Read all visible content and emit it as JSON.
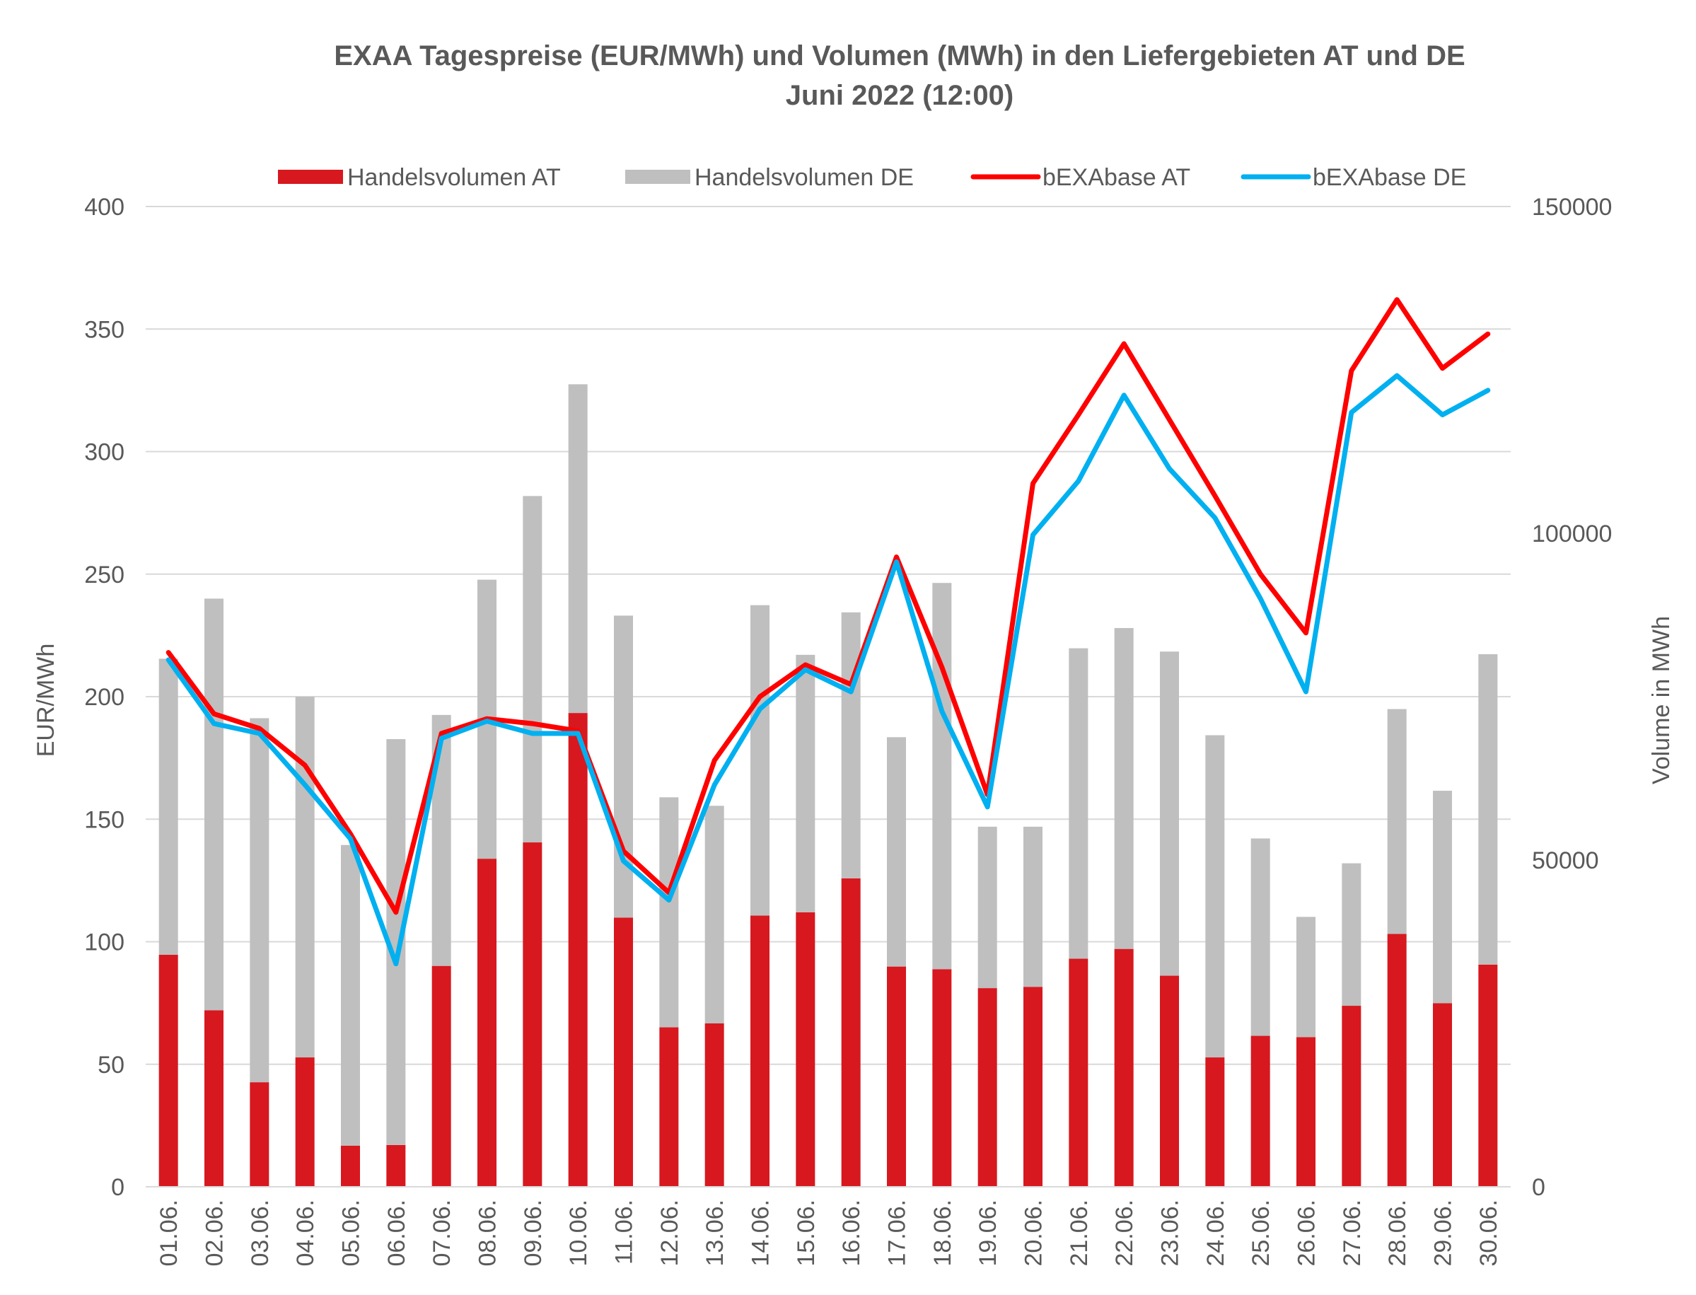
{
  "chart_data": {
    "type": "bar",
    "title": "EXAA Tagespreise (EUR/MWh) und Volumen (MWh) in den Liefergebieten AT und DE",
    "subtitle": "Juni 2022 (12:00)",
    "ylabel": "EUR/MWh",
    "y2label": "Volume in MWh",
    "ylim": [
      0,
      400
    ],
    "y2lim": [
      0,
      150000
    ],
    "yticks": [
      0,
      50,
      100,
      150,
      200,
      250,
      300,
      350,
      400
    ],
    "y2ticks": [
      0,
      50000,
      100000,
      150000
    ],
    "grid": true,
    "legend_position": "top",
    "stacked_bars": true,
    "categories": [
      "01.06.",
      "02.06.",
      "03.06.",
      "04.06.",
      "05.06.",
      "06.06.",
      "07.06.",
      "08.06.",
      "09.06.",
      "10.06.",
      "11.06.",
      "12.06.",
      "13.06.",
      "14.06.",
      "15.06.",
      "16.06.",
      "17.06.",
      "18.06.",
      "19.06.",
      "20.06.",
      "21.06.",
      "22.06.",
      "23.06.",
      "24.06.",
      "25.06.",
      "26.06.",
      "27.06.",
      "28.06.",
      "29.06.",
      "30.06."
    ],
    "series": [
      {
        "name": "Handelsvolumen AT",
        "kind": "bar",
        "axis": "right",
        "color": "#d7181f",
        "values": [
          35500,
          27000,
          16000,
          19800,
          6300,
          6400,
          33800,
          50200,
          52700,
          72500,
          41200,
          24400,
          25000,
          41500,
          42000,
          47200,
          33700,
          33300,
          30400,
          30600,
          34900,
          36400,
          32300,
          19800,
          23100,
          22900,
          27700,
          38700,
          28100,
          34000
        ]
      },
      {
        "name": "Handelsvolumen DE",
        "kind": "bar",
        "axis": "right",
        "color": "#bfbfbf",
        "values": [
          45300,
          63000,
          55700,
          55200,
          46000,
          62100,
          38400,
          42700,
          53000,
          50300,
          46200,
          35200,
          33300,
          47500,
          39400,
          40700,
          35100,
          59100,
          24700,
          24500,
          47500,
          49100,
          49600,
          49300,
          30200,
          18400,
          21800,
          34400,
          32500,
          47500
        ]
      },
      {
        "name": "bEXAbase AT",
        "kind": "line",
        "axis": "left",
        "color": "#ff0000",
        "values": [
          218,
          193,
          187,
          172,
          144,
          112,
          185,
          191,
          189,
          186,
          137,
          120,
          174,
          200,
          213,
          205,
          257,
          212,
          160,
          287,
          315,
          344,
          313,
          282,
          250,
          226,
          333,
          362,
          334,
          348
        ]
      },
      {
        "name": "bEXAbase DE",
        "kind": "line",
        "axis": "left",
        "color": "#00b0f0",
        "values": [
          215,
          189,
          185,
          164,
          142,
          91,
          183,
          190,
          185,
          185,
          133,
          117,
          164,
          195,
          211,
          202,
          255,
          194,
          155,
          266,
          288,
          323,
          293,
          273,
          240,
          202,
          316,
          331,
          315,
          325
        ]
      }
    ]
  }
}
